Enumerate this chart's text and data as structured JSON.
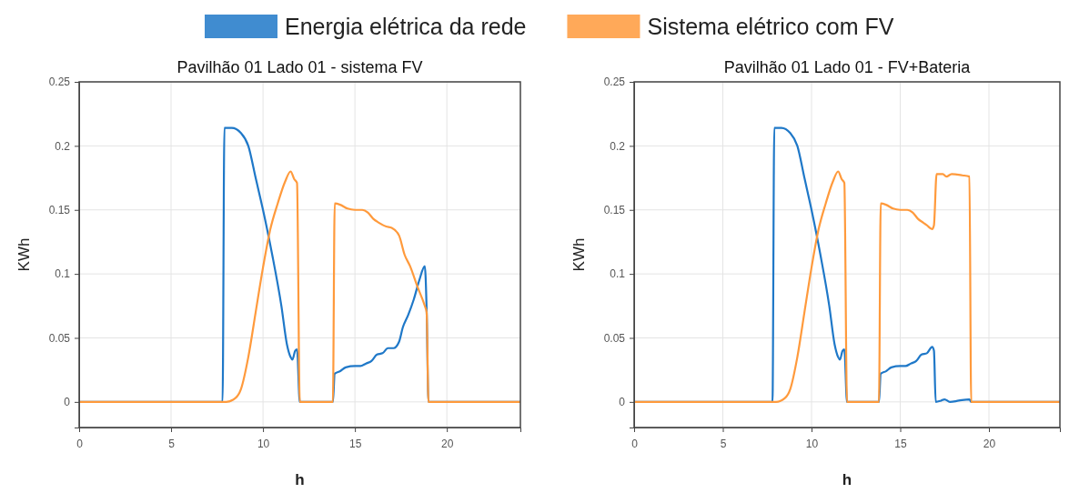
{
  "chart_data": [
    {
      "type": "line",
      "title": "Pavilhão 01 Lado 01 - sistema FV",
      "xlabel": "h",
      "ylabel": "KWh",
      "xlim": [
        0,
        24
      ],
      "ylim": [
        -0.02,
        0.25
      ],
      "xticks": [
        0,
        5,
        10,
        15,
        20
      ],
      "yticks": [
        0,
        0.05,
        0.1,
        0.15,
        0.2,
        0.25
      ],
      "grid": true,
      "legend": "top",
      "line_style": "solid",
      "series": [
        {
          "name": "Energia elétrica da rede",
          "color": "#1f78c8",
          "x": [
            0,
            7.8,
            7.9,
            8.3,
            8.8,
            9.2,
            9.6,
            10,
            10.5,
            11,
            11.3,
            11.5,
            11.6,
            11.75,
            11.85,
            12,
            13.8,
            13.9,
            14.2,
            14.5,
            15,
            15.3,
            15.6,
            15.9,
            16.2,
            16.5,
            16.8,
            17.1,
            17.4,
            17.6,
            17.9,
            18.2,
            18.5,
            18.8,
            18.9,
            19,
            24
          ],
          "values": [
            0,
            0,
            0.214,
            0.214,
            0.21,
            0.2,
            0.175,
            0.15,
            0.115,
            0.075,
            0.045,
            0.035,
            0.033,
            0.04,
            0.041,
            0,
            0,
            0.022,
            0.024,
            0.027,
            0.028,
            0.028,
            0.03,
            0.032,
            0.037,
            0.038,
            0.042,
            0.042,
            0.047,
            0.058,
            0.068,
            0.08,
            0.095,
            0.106,
            0.072,
            0,
            0
          ]
        },
        {
          "name": "Sistema elétrico com FV",
          "color": "#ff9a3c",
          "x": [
            0,
            8,
            8.5,
            8.8,
            9.2,
            9.6,
            10,
            10.4,
            10.8,
            11.2,
            11.5,
            11.7,
            11.85,
            12,
            13.8,
            13.9,
            14.2,
            14.6,
            15,
            15.4,
            15.7,
            16,
            16.3,
            16.7,
            17,
            17.4,
            17.7,
            18,
            18.4,
            18.8,
            18.9,
            19,
            24
          ],
          "values": [
            0,
            0,
            0.003,
            0.01,
            0.035,
            0.07,
            0.105,
            0.135,
            0.155,
            0.172,
            0.18,
            0.174,
            0.171,
            0,
            0,
            0.155,
            0.154,
            0.151,
            0.15,
            0.15,
            0.148,
            0.143,
            0.14,
            0.137,
            0.136,
            0.13,
            0.115,
            0.106,
            0.09,
            0.075,
            0.07,
            0,
            0
          ]
        }
      ]
    },
    {
      "type": "line",
      "title": "Pavilhão 01 Lado 01 - FV+Bateria",
      "xlabel": "h",
      "ylabel": "KWh",
      "xlim": [
        0,
        24
      ],
      "ylim": [
        -0.02,
        0.25
      ],
      "xticks": [
        0,
        5,
        10,
        15,
        20
      ],
      "yticks": [
        0,
        0.05,
        0.1,
        0.15,
        0.2,
        0.25
      ],
      "grid": true,
      "line_style": "solid",
      "series": [
        {
          "color": "#1f78c8",
          "x": [
            0,
            7.8,
            7.9,
            8.3,
            8.8,
            9.2,
            9.6,
            10,
            10.5,
            11,
            11.3,
            11.5,
            11.6,
            11.75,
            11.85,
            12,
            13.8,
            13.9,
            14.2,
            14.5,
            15,
            15.3,
            15.6,
            15.9,
            16.2,
            16.5,
            16.8,
            16.9,
            17,
            17.3,
            17.5,
            17.8,
            18.3,
            18.9,
            19,
            24
          ],
          "values": [
            0,
            0,
            0.214,
            0.214,
            0.21,
            0.2,
            0.175,
            0.15,
            0.115,
            0.075,
            0.045,
            0.035,
            0.033,
            0.04,
            0.041,
            0,
            0,
            0.022,
            0.024,
            0.027,
            0.028,
            0.028,
            0.03,
            0.032,
            0.037,
            0.038,
            0.043,
            0.04,
            0,
            0.001,
            0.002,
            0,
            0.001,
            0.002,
            0,
            0
          ]
        },
        {
          "color": "#ff9a3c",
          "x": [
            0,
            8,
            8.5,
            8.8,
            9.2,
            9.6,
            10,
            10.4,
            10.8,
            11.2,
            11.5,
            11.7,
            11.85,
            12,
            13.8,
            13.9,
            14.2,
            14.6,
            15,
            15.4,
            15.7,
            16,
            16.3,
            16.5,
            16.8,
            16.9,
            17.05,
            17.4,
            17.6,
            17.9,
            18.5,
            18.9,
            19,
            24
          ],
          "values": [
            0,
            0,
            0.003,
            0.01,
            0.035,
            0.07,
            0.105,
            0.135,
            0.155,
            0.172,
            0.18,
            0.174,
            0.171,
            0,
            0,
            0.155,
            0.154,
            0.151,
            0.15,
            0.15,
            0.148,
            0.143,
            0.14,
            0.138,
            0.135,
            0.138,
            0.178,
            0.178,
            0.176,
            0.178,
            0.177,
            0.176,
            0,
            0
          ]
        }
      ]
    }
  ]
}
